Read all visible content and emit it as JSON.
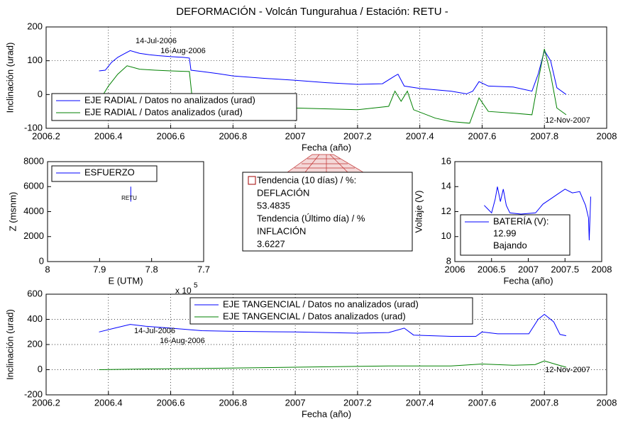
{
  "chart_data": [
    {
      "type": "line",
      "title": "DEFORMACIÓN - Volcán Tungurahua  /  Estación: RETU -",
      "xlabel": "Fecha (año)",
      "ylabel": "Inclinación (urad)",
      "xlim": [
        2006.2,
        2008
      ],
      "xticks": [
        2006.2,
        2006.4,
        2006.6,
        2006.8,
        2007,
        2007.2,
        2007.4,
        2007.6,
        2007.8,
        2008
      ],
      "ylim": [
        -100,
        200
      ],
      "yticks": [
        -100,
        0,
        100,
        200
      ],
      "grid": true,
      "annotations": [
        "14-Jul-2006",
        "16-Aug-2006",
        "12-Nov-2007"
      ],
      "series": [
        {
          "name": "EJE RADIAL / Datos no analizados (urad)",
          "color": "#0000ff",
          "x": [
            2006.37,
            2006.39,
            2006.41,
            2006.43,
            2006.45,
            2006.47,
            2006.5,
            2006.53,
            2006.56,
            2006.6,
            2006.64,
            2006.66,
            2006.665,
            2006.7,
            2006.75,
            2006.8,
            2006.9,
            2007.0,
            2007.1,
            2007.2,
            2007.28,
            2007.32,
            2007.33,
            2007.35,
            2007.4,
            2007.5,
            2007.55,
            2007.57,
            2007.59,
            2007.62,
            2007.7,
            2007.76,
            2007.78,
            2007.8,
            2007.82,
            2007.84,
            2007.87
          ],
          "values": [
            70,
            72,
            95,
            110,
            120,
            130,
            122,
            118,
            115,
            112,
            110,
            108,
            72,
            68,
            62,
            55,
            48,
            42,
            35,
            30,
            32,
            55,
            60,
            25,
            18,
            10,
            2,
            10,
            38,
            25,
            22,
            10,
            60,
            130,
            100,
            20,
            0
          ]
        },
        {
          "name": "EJE RADIAL / Datos analizados (urad)",
          "color": "#008000",
          "x": [
            2006.38,
            2006.4,
            2006.43,
            2006.46,
            2006.5,
            2006.55,
            2006.6,
            2006.66,
            2006.67,
            2006.75,
            2006.9,
            2007.0,
            2007.2,
            2007.3,
            2007.32,
            2007.34,
            2007.36,
            2007.38,
            2007.45,
            2007.5,
            2007.56,
            2007.59,
            2007.62,
            2007.7,
            2007.76,
            2007.78,
            2007.8,
            2007.82,
            2007.84,
            2007.87
          ],
          "values": [
            -5,
            25,
            60,
            85,
            75,
            72,
            70,
            68,
            -20,
            -28,
            -35,
            -40,
            -45,
            -35,
            10,
            -20,
            10,
            -45,
            -70,
            -80,
            -85,
            -10,
            -50,
            -55,
            -60,
            40,
            135,
            60,
            -40,
            -60
          ]
        }
      ]
    },
    {
      "type": "line",
      "xlabel": "E (UTM)",
      "ylabel": "Z (msnm)",
      "xlim": [
        8,
        7.7
      ],
      "xticks": [
        8,
        7.9,
        7.8,
        7.7
      ],
      "ylim": [
        0,
        8000
      ],
      "yticks": [
        0,
        2000,
        4000,
        6000,
        8000
      ],
      "grid": false,
      "x_exponent": {
        "base": "x 10",
        "power": "5"
      },
      "annotations": [
        "RETU"
      ],
      "series": [
        {
          "name": "ESFUERZO",
          "color": "#0000ff",
          "x": [
            7.84,
            7.84
          ],
          "values": [
            4800,
            6000
          ]
        }
      ]
    },
    {
      "type": "line",
      "xlabel": "Fecha (año)",
      "ylabel": "Voltaje (V)",
      "xlim": [
        2006,
        2008
      ],
      "xticks": [
        2006,
        2006.5,
        2007,
        2007.5,
        2008
      ],
      "ylim": [
        8,
        16
      ],
      "yticks": [
        8,
        10,
        12,
        14,
        16
      ],
      "grid": false,
      "legend_notes": [
        "12.99",
        "Bajando"
      ],
      "series": [
        {
          "name": "BATERÍA (V):",
          "color": "#0000ff",
          "x": [
            2006.4,
            2006.45,
            2006.5,
            2006.55,
            2006.58,
            2006.62,
            2006.66,
            2006.7,
            2006.75,
            2006.9,
            2007.1,
            2007.2,
            2007.3,
            2007.4,
            2007.5,
            2007.6,
            2007.7,
            2007.78,
            2007.82,
            2007.83,
            2007.85
          ],
          "values": [
            12.5,
            12.2,
            11.9,
            13,
            14,
            12.8,
            13.8,
            12.5,
            11.9,
            11.8,
            11.9,
            12.6,
            13,
            13.4,
            13.8,
            13.5,
            13.6,
            12.5,
            11.5,
            9.7,
            13.2
          ]
        }
      ]
    },
    {
      "type": "line",
      "xlabel": "Fecha (año)",
      "ylabel": "Inclinación (urad)",
      "xlim": [
        2006.2,
        2008
      ],
      "xticks": [
        2006.2,
        2006.4,
        2006.6,
        2006.8,
        2007,
        2007.2,
        2007.4,
        2007.6,
        2007.8,
        2008
      ],
      "ylim": [
        -200,
        600
      ],
      "yticks": [
        -200,
        0,
        200,
        400,
        600
      ],
      "grid": true,
      "annotations": [
        "14-Jul-2006",
        "16-Aug-2006",
        "12-Nov-2007"
      ],
      "series": [
        {
          "name": "EJE TANGENCIAL / Datos no analizados (urad)",
          "color": "#0000ff",
          "x": [
            2006.37,
            2006.42,
            2006.47,
            2006.52,
            2006.6,
            2006.7,
            2006.8,
            2007.0,
            2007.2,
            2007.3,
            2007.35,
            2007.38,
            2007.5,
            2007.58,
            2007.6,
            2007.65,
            2007.75,
            2007.78,
            2007.8,
            2007.83,
            2007.85,
            2007.87
          ],
          "values": [
            300,
            330,
            360,
            345,
            330,
            310,
            305,
            300,
            290,
            295,
            330,
            275,
            265,
            265,
            300,
            285,
            285,
            400,
            440,
            380,
            280,
            270
          ]
        },
        {
          "name": "EJE TANGENCIAL / Datos analizados (urad)",
          "color": "#008000",
          "x": [
            2006.37,
            2006.5,
            2006.7,
            2007.0,
            2007.3,
            2007.5,
            2007.6,
            2007.7,
            2007.77,
            2007.8,
            2007.84,
            2007.87
          ],
          "values": [
            0,
            5,
            10,
            20,
            30,
            30,
            45,
            35,
            40,
            70,
            40,
            20
          ]
        }
      ]
    }
  ],
  "trend_box": {
    "lines": [
      "Tendencia (10 días) / %:",
      "DEFLACIÓN",
      "53.4835",
      "Tendencia (Último día) / %",
      "INFLACIÓN",
      "3.6227"
    ]
  }
}
